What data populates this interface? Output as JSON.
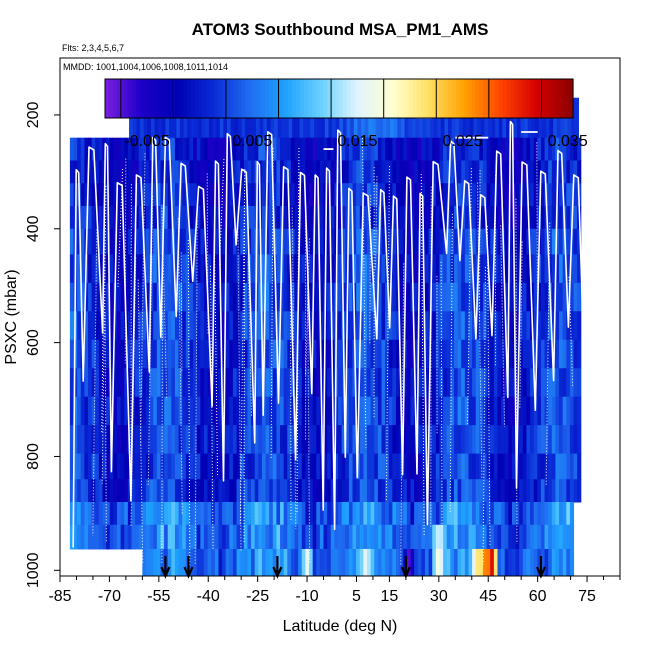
{
  "chart_data": {
    "type": "heatmap",
    "title": "ATOM3 Southbound MSA_PM1_AMS",
    "flights_label": "Flts: 2,3,4,5,6,7",
    "mmdd_label": "MMDD: 1001,1004,1006,1008,1011,1014",
    "xlabel": "Latitude (deg N)",
    "ylabel": "PSXC (mbar)",
    "xlim": [
      -85,
      85
    ],
    "ylim": [
      1010,
      100
    ],
    "x_ticks": [
      -85,
      -70,
      -55,
      -40,
      -25,
      -10,
      5,
      15,
      30,
      45,
      60,
      75
    ],
    "x_minor_ticks": [
      -80,
      -75,
      -65,
      -60,
      -50,
      -45,
      -35,
      -30,
      -20,
      -15,
      -5,
      0,
      10,
      20,
      25,
      35,
      40,
      50,
      55,
      65,
      70,
      80,
      85
    ],
    "y_ticks": [
      200,
      400,
      600,
      800,
      1000
    ],
    "colorbar": {
      "min": -0.009,
      "max": 0.0355,
      "ticks": [
        -0.005,
        0.005,
        0.015,
        0.025,
        0.035
      ],
      "tick_labels": [
        "-0.005",
        "0.005",
        "0.015",
        "0.025",
        "0.035"
      ],
      "colors": [
        "#7b1fe0",
        "#1e00c8",
        "#0000b4",
        "#0a2ad6",
        "#1f6cf0",
        "#1ea0ff",
        "#6ad0ff",
        "#dff3ff",
        "#ffffd0",
        "#ffe060",
        "#ffa000",
        "#ff4400",
        "#d40000",
        "#8b0000"
      ]
    },
    "flight_arrows_lat": [
      -53,
      -46,
      -19,
      20,
      61
    ],
    "lat_range": [
      -82,
      72
    ],
    "pressure_levels": [
      220,
      260,
      300,
      340,
      380,
      420,
      470,
      520,
      570,
      620,
      670,
      720,
      770,
      820,
      860,
      900,
      940,
      985
    ],
    "hotspots": [
      {
        "lat": 46,
        "p": 985,
        "value": 0.034
      },
      {
        "lat": 44,
        "p": 985,
        "value": 0.028
      },
      {
        "lat": 42,
        "p": 985,
        "value": 0.022
      },
      {
        "lat": 30,
        "p": 955,
        "value": 0.021
      },
      {
        "lat": 30,
        "p": 985,
        "value": 0.019
      },
      {
        "lat": 8,
        "p": 985,
        "value": 0.017
      },
      {
        "lat": -10,
        "p": 985,
        "value": 0.016
      },
      {
        "lat": -25,
        "p": 900,
        "value": 0.011
      },
      {
        "lat": 21,
        "p": 985,
        "value": -0.008
      }
    ]
  }
}
